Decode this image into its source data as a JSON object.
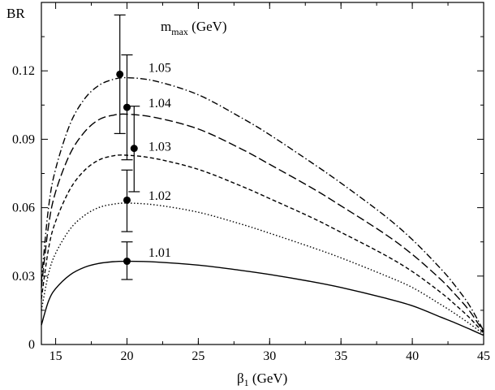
{
  "chart_data": {
    "type": "line",
    "title": "",
    "xlabel": "β",
    "xlabel_sub": "1",
    "xlabel_unit": " (GeV)",
    "ylabel": "BR",
    "legend_title": "m",
    "legend_title_sub": "max",
    "legend_title_unit": " (GeV)",
    "xlim": [
      14,
      45
    ],
    "ylim": [
      0,
      0.15
    ],
    "xticks": [
      15,
      20,
      25,
      30,
      35,
      40,
      45
    ],
    "yticks": [
      0,
      0.03,
      0.06,
      0.09,
      0.12
    ],
    "ytick_labels": [
      "0",
      "0.03",
      "0.06",
      "0.09",
      "0.12"
    ],
    "grid": false,
    "series": [
      {
        "name": "1.01",
        "style": "solid",
        "points": [
          [
            14.0,
            0.0085
          ],
          [
            14.5,
            0.019
          ],
          [
            15,
            0.0245
          ],
          [
            16,
            0.0305
          ],
          [
            17,
            0.0338
          ],
          [
            18,
            0.0355
          ],
          [
            19,
            0.0363
          ],
          [
            20,
            0.0365
          ],
          [
            22,
            0.0362
          ],
          [
            25,
            0.0348
          ],
          [
            28,
            0.0325
          ],
          [
            30,
            0.0307
          ],
          [
            33,
            0.0275
          ],
          [
            35,
            0.025
          ],
          [
            38,
            0.0205
          ],
          [
            40,
            0.017
          ],
          [
            42,
            0.012
          ],
          [
            43,
            0.0095
          ],
          [
            44,
            0.0068
          ],
          [
            45,
            0.004
          ]
        ]
      },
      {
        "name": "1.02",
        "style": "dotted",
        "points": [
          [
            14.0,
            0.015
          ],
          [
            14.5,
            0.031
          ],
          [
            15,
            0.04
          ],
          [
            16,
            0.0505
          ],
          [
            17,
            0.0565
          ],
          [
            18,
            0.06
          ],
          [
            19,
            0.0615
          ],
          [
            20,
            0.062
          ],
          [
            22,
            0.0612
          ],
          [
            25,
            0.058
          ],
          [
            28,
            0.0528
          ],
          [
            30,
            0.0488
          ],
          [
            33,
            0.0425
          ],
          [
            35,
            0.038
          ],
          [
            38,
            0.0305
          ],
          [
            40,
            0.025
          ],
          [
            42,
            0.0175
          ],
          [
            43,
            0.0135
          ],
          [
            44,
            0.0092
          ],
          [
            45,
            0.0045
          ]
        ]
      },
      {
        "name": "1.03",
        "style": "dashed",
        "points": [
          [
            14.0,
            0.02
          ],
          [
            14.5,
            0.042
          ],
          [
            15,
            0.054
          ],
          [
            16,
            0.068
          ],
          [
            17,
            0.0762
          ],
          [
            18,
            0.0808
          ],
          [
            19,
            0.0827
          ],
          [
            20,
            0.083
          ],
          [
            22,
            0.0815
          ],
          [
            25,
            0.0768
          ],
          [
            28,
            0.0695
          ],
          [
            30,
            0.064
          ],
          [
            33,
            0.0555
          ],
          [
            35,
            0.0492
          ],
          [
            38,
            0.0395
          ],
          [
            40,
            0.032
          ],
          [
            42,
            0.0228
          ],
          [
            43,
            0.0175
          ],
          [
            44,
            0.0118
          ],
          [
            45,
            0.005
          ]
        ]
      },
      {
        "name": "1.04",
        "style": "longdash",
        "points": [
          [
            14.0,
            0.025
          ],
          [
            14.5,
            0.052
          ],
          [
            15,
            0.067
          ],
          [
            16,
            0.0835
          ],
          [
            17,
            0.093
          ],
          [
            18,
            0.0985
          ],
          [
            19,
            0.1005
          ],
          [
            20,
            0.101
          ],
          [
            22,
            0.0995
          ],
          [
            25,
            0.0945
          ],
          [
            28,
            0.0858
          ],
          [
            30,
            0.079
          ],
          [
            33,
            0.0685
          ],
          [
            35,
            0.0608
          ],
          [
            38,
            0.0488
          ],
          [
            40,
            0.0395
          ],
          [
            42,
            0.0285
          ],
          [
            43,
            0.022
          ],
          [
            44,
            0.0148
          ],
          [
            45,
            0.0055
          ]
        ]
      },
      {
        "name": "1.05",
        "style": "dashdot",
        "points": [
          [
            14.0,
            0.028
          ],
          [
            14.5,
            0.06
          ],
          [
            15,
            0.077
          ],
          [
            16,
            0.0965
          ],
          [
            17,
            0.1075
          ],
          [
            18,
            0.1135
          ],
          [
            19,
            0.1162
          ],
          [
            20,
            0.117
          ],
          [
            22,
            0.1155
          ],
          [
            25,
            0.1095
          ],
          [
            28,
            0.0995
          ],
          [
            30,
            0.092
          ],
          [
            33,
            0.0795
          ],
          [
            35,
            0.0708
          ],
          [
            38,
            0.0568
          ],
          [
            40,
            0.046
          ],
          [
            42,
            0.0332
          ],
          [
            43,
            0.0258
          ],
          [
            44,
            0.0172
          ],
          [
            45,
            0.006
          ]
        ]
      }
    ],
    "label_positions": [
      {
        "text": "1.01",
        "x": 21.5,
        "y": 0.0385
      },
      {
        "text": "1.02",
        "x": 21.5,
        "y": 0.0635
      },
      {
        "text": "1.03",
        "x": 21.5,
        "y": 0.085
      },
      {
        "text": "1.04",
        "x": 21.5,
        "y": 0.104
      },
      {
        "text": "1.05",
        "x": 21.5,
        "y": 0.1195
      }
    ],
    "error_points": [
      {
        "x": 20.0,
        "y": 0.0365,
        "ymin": 0.0285,
        "ymax": 0.045
      },
      {
        "x": 20.0,
        "y": 0.0633,
        "ymin": 0.0495,
        "ymax": 0.0765
      },
      {
        "x": 20.5,
        "y": 0.086,
        "ymin": 0.067,
        "ymax": 0.1045
      },
      {
        "x": 20.0,
        "y": 0.104,
        "ymin": 0.081,
        "ymax": 0.127
      },
      {
        "x": 19.5,
        "y": 0.1185,
        "ymin": 0.0925,
        "ymax": 0.1445
      }
    ]
  }
}
